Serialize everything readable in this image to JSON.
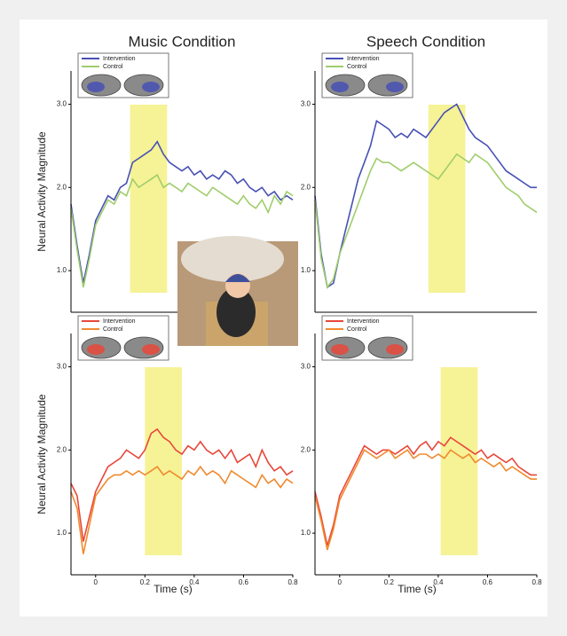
{
  "chart_data": [
    {
      "type": "line",
      "title": "Music Condition",
      "y_label": "Neural Activity Magnitude",
      "legend": "upper-left",
      "x": [
        -0.1,
        -0.075,
        -0.05,
        -0.025,
        0,
        0.025,
        0.05,
        0.075,
        0.1,
        0.125,
        0.15,
        0.175,
        0.2,
        0.225,
        0.25,
        0.275,
        0.3,
        0.325,
        0.35,
        0.375,
        0.4,
        0.425,
        0.45,
        0.475,
        0.5,
        0.525,
        0.55,
        0.575,
        0.6,
        0.625,
        0.65,
        0.675,
        0.7,
        0.725,
        0.75,
        0.775,
        0.8
      ],
      "xlim": [
        -0.1,
        0.8
      ],
      "ylim": [
        0.5,
        3.4
      ],
      "yticks": [
        {
          "value": 1,
          "label": "1.0"
        },
        {
          "value": 2,
          "label": "2.0"
        },
        {
          "value": 3,
          "label": "3.0"
        }
      ],
      "highlight": [
        0.14,
        0.29
      ],
      "highlight_color": "#f4ef7c",
      "series": [
        {
          "name": "Intervention",
          "color": "#4750b5",
          "values": [
            1.8,
            1.3,
            0.85,
            1.2,
            1.6,
            1.75,
            1.9,
            1.85,
            2.0,
            2.05,
            2.3,
            2.35,
            2.4,
            2.45,
            2.55,
            2.4,
            2.3,
            2.25,
            2.2,
            2.25,
            2.15,
            2.2,
            2.1,
            2.15,
            2.1,
            2.2,
            2.15,
            2.05,
            2.1,
            2.0,
            1.95,
            2.0,
            1.9,
            1.95,
            1.85,
            1.9,
            1.85
          ]
        },
        {
          "name": "Control",
          "color": "#9fcd6c",
          "values": [
            1.75,
            1.25,
            0.8,
            1.15,
            1.55,
            1.7,
            1.85,
            1.8,
            1.95,
            1.9,
            2.1,
            2.0,
            2.05,
            2.1,
            2.15,
            2.0,
            2.05,
            2.0,
            1.95,
            2.05,
            2.0,
            1.95,
            1.9,
            2.0,
            1.95,
            1.9,
            1.85,
            1.8,
            1.9,
            1.8,
            1.75,
            1.85,
            1.7,
            1.9,
            1.8,
            1.95,
            1.9
          ]
        }
      ]
    },
    {
      "type": "line",
      "title": "Speech Condition",
      "legend": "upper-left",
      "x": [
        -0.1,
        -0.075,
        -0.05,
        -0.025,
        0,
        0.025,
        0.05,
        0.075,
        0.1,
        0.125,
        0.15,
        0.175,
        0.2,
        0.225,
        0.25,
        0.275,
        0.3,
        0.325,
        0.35,
        0.375,
        0.4,
        0.425,
        0.45,
        0.475,
        0.5,
        0.525,
        0.55,
        0.575,
        0.6,
        0.625,
        0.65,
        0.675,
        0.7,
        0.725,
        0.75,
        0.775,
        0.8
      ],
      "xlim": [
        -0.1,
        0.8
      ],
      "ylim": [
        0.5,
        3.4
      ],
      "yticks": [
        {
          "value": 1,
          "label": "1.0"
        },
        {
          "value": 2,
          "label": "2.0"
        },
        {
          "value": 3,
          "label": "3.0"
        }
      ],
      "highlight": [
        0.36,
        0.51
      ],
      "highlight_color": "#f4ef7c",
      "series": [
        {
          "name": "Intervention",
          "color": "#4750b5",
          "values": [
            1.9,
            1.2,
            0.8,
            0.85,
            1.2,
            1.5,
            1.8,
            2.1,
            2.3,
            2.5,
            2.8,
            2.75,
            2.7,
            2.6,
            2.65,
            2.6,
            2.7,
            2.65,
            2.6,
            2.7,
            2.8,
            2.9,
            2.95,
            3.0,
            2.85,
            2.7,
            2.6,
            2.55,
            2.5,
            2.4,
            2.3,
            2.2,
            2.15,
            2.1,
            2.05,
            2.0,
            2.0
          ]
        },
        {
          "name": "Control",
          "color": "#9fcd6c",
          "values": [
            1.85,
            1.15,
            0.8,
            0.9,
            1.2,
            1.4,
            1.6,
            1.8,
            2.0,
            2.2,
            2.35,
            2.3,
            2.3,
            2.25,
            2.2,
            2.25,
            2.3,
            2.25,
            2.2,
            2.15,
            2.1,
            2.2,
            2.3,
            2.4,
            2.35,
            2.3,
            2.4,
            2.35,
            2.3,
            2.2,
            2.1,
            2.0,
            1.95,
            1.9,
            1.8,
            1.75,
            1.7
          ]
        }
      ]
    },
    {
      "type": "line",
      "y_label": "Neural Activity Magnitude",
      "x_label": "Time (s)",
      "legend": "upper-left",
      "x": [
        -0.1,
        -0.075,
        -0.05,
        -0.025,
        0,
        0.025,
        0.05,
        0.075,
        0.1,
        0.125,
        0.15,
        0.175,
        0.2,
        0.225,
        0.25,
        0.275,
        0.3,
        0.325,
        0.35,
        0.375,
        0.4,
        0.425,
        0.45,
        0.475,
        0.5,
        0.525,
        0.55,
        0.575,
        0.6,
        0.625,
        0.65,
        0.675,
        0.7,
        0.725,
        0.75,
        0.775,
        0.8
      ],
      "xlim": [
        -0.1,
        0.8
      ],
      "ylim": [
        0.5,
        3.4
      ],
      "xticks": [
        0,
        0.2,
        0.4,
        0.6,
        0.8
      ],
      "yticks": [
        {
          "value": 1,
          "label": "1.0"
        },
        {
          "value": 2,
          "label": "2.0"
        },
        {
          "value": 3,
          "label": "3.0"
        }
      ],
      "highlight": [
        0.2,
        0.35
      ],
      "highlight_color": "#f4ef7c",
      "series": [
        {
          "name": "Intervention",
          "color": "#e8473a",
          "values": [
            1.6,
            1.45,
            0.9,
            1.2,
            1.5,
            1.65,
            1.8,
            1.85,
            1.9,
            2.0,
            1.95,
            1.9,
            2.0,
            2.2,
            2.25,
            2.15,
            2.1,
            2.0,
            1.95,
            2.05,
            2.0,
            2.1,
            2.0,
            1.95,
            2.0,
            1.9,
            2.0,
            1.85,
            1.9,
            1.95,
            1.8,
            2.0,
            1.85,
            1.75,
            1.8,
            1.7,
            1.75
          ]
        },
        {
          "name": "Control",
          "color": "#f08a2e",
          "values": [
            1.5,
            1.3,
            0.75,
            1.1,
            1.45,
            1.55,
            1.65,
            1.7,
            1.7,
            1.75,
            1.7,
            1.75,
            1.7,
            1.75,
            1.8,
            1.7,
            1.75,
            1.7,
            1.65,
            1.75,
            1.7,
            1.8,
            1.7,
            1.75,
            1.7,
            1.6,
            1.75,
            1.7,
            1.65,
            1.6,
            1.55,
            1.7,
            1.6,
            1.65,
            1.55,
            1.65,
            1.6
          ]
        }
      ]
    },
    {
      "type": "line",
      "x_label": "Time (s)",
      "legend": "upper-left",
      "x": [
        -0.1,
        -0.075,
        -0.05,
        -0.025,
        0,
        0.025,
        0.05,
        0.075,
        0.1,
        0.125,
        0.15,
        0.175,
        0.2,
        0.225,
        0.25,
        0.275,
        0.3,
        0.325,
        0.35,
        0.375,
        0.4,
        0.425,
        0.45,
        0.475,
        0.5,
        0.525,
        0.55,
        0.575,
        0.6,
        0.625,
        0.65,
        0.675,
        0.7,
        0.725,
        0.75,
        0.775,
        0.8
      ],
      "xlim": [
        -0.1,
        0.8
      ],
      "ylim": [
        0.5,
        3.4
      ],
      "xticks": [
        0,
        0.2,
        0.4,
        0.6,
        0.8
      ],
      "yticks": [
        {
          "value": 1,
          "label": "1.0"
        },
        {
          "value": 2,
          "label": "2.0"
        },
        {
          "value": 3,
          "label": "3.0"
        }
      ],
      "highlight": [
        0.41,
        0.56
      ],
      "highlight_color": "#f4ef7c",
      "series": [
        {
          "name": "Intervention",
          "color": "#e8473a",
          "values": [
            1.5,
            1.2,
            0.85,
            1.1,
            1.45,
            1.6,
            1.75,
            1.9,
            2.05,
            2.0,
            1.95,
            2.0,
            2.0,
            1.95,
            2.0,
            2.05,
            1.95,
            2.05,
            2.1,
            2.0,
            2.1,
            2.05,
            2.15,
            2.1,
            2.05,
            2.0,
            1.95,
            2.0,
            1.9,
            1.95,
            1.9,
            1.85,
            1.9,
            1.8,
            1.75,
            1.7,
            1.7
          ]
        },
        {
          "name": "Control",
          "color": "#f08a2e",
          "values": [
            1.45,
            1.15,
            0.8,
            1.05,
            1.4,
            1.55,
            1.7,
            1.85,
            2.0,
            1.95,
            1.9,
            1.95,
            2.0,
            1.9,
            1.95,
            2.0,
            1.9,
            1.95,
            1.95,
            1.9,
            1.95,
            1.9,
            2.0,
            1.95,
            1.9,
            1.95,
            1.85,
            1.9,
            1.85,
            1.8,
            1.85,
            1.75,
            1.8,
            1.75,
            1.7,
            1.65,
            1.65
          ]
        }
      ]
    }
  ]
}
